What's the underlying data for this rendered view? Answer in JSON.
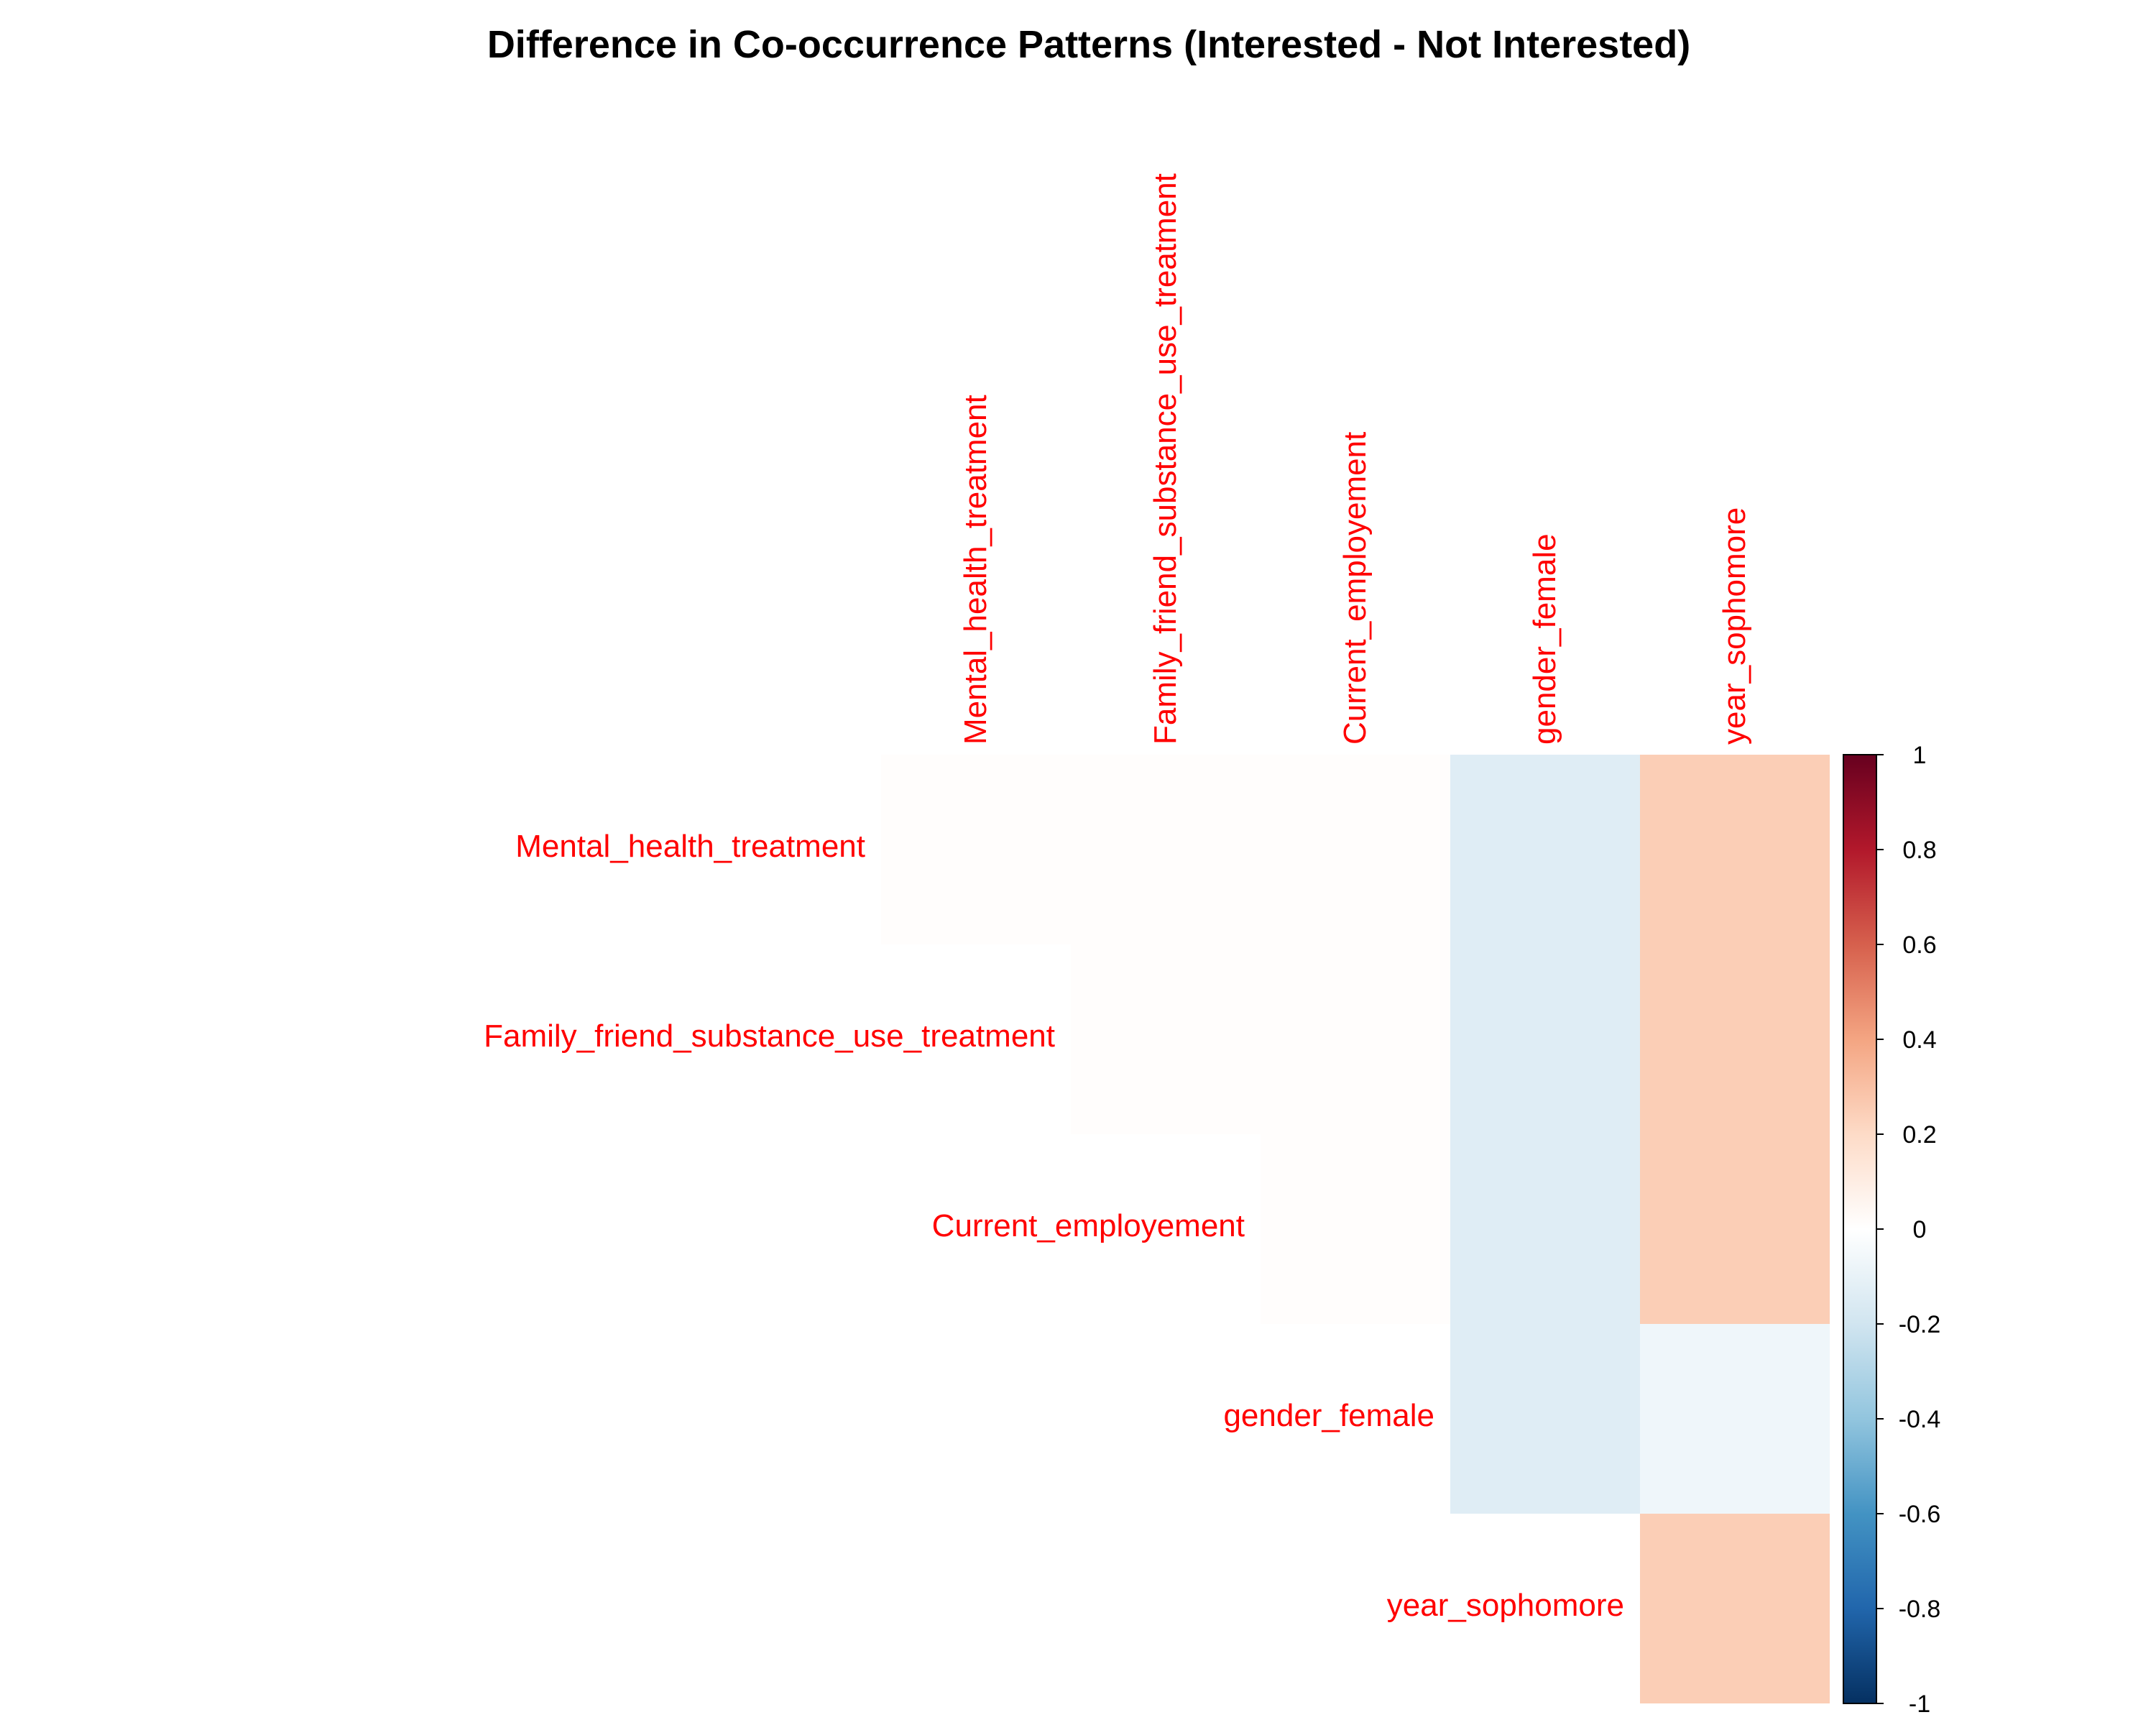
{
  "chart_data": {
    "type": "heatmap",
    "title": "Difference in Co-occurrence Patterns (Interested - Not Interested)",
    "layout": "upper-triangle",
    "variables": [
      "Mental_health_treatment",
      "Family_friend_substance_use_treatment",
      "Current_employement",
      "gender_female",
      "year_sophomore"
    ],
    "matrix": [
      [
        0.01,
        0.01,
        0.01,
        -0.14,
        0.25
      ],
      [
        null,
        0.01,
        0.01,
        -0.14,
        0.25
      ],
      [
        null,
        null,
        0.01,
        -0.14,
        0.25
      ],
      [
        null,
        null,
        null,
        -0.14,
        -0.07
      ],
      [
        null,
        null,
        null,
        null,
        0.25
      ]
    ],
    "colorbar": {
      "min": -1,
      "max": 1,
      "ticks": [
        "1",
        "0.8",
        "0.6",
        "0.4",
        "0.2",
        "0",
        "-0.2",
        "-0.4",
        "-0.6",
        "-0.8",
        "-1"
      ],
      "colors": [
        "#053061",
        "#2166ac",
        "#4393c3",
        "#92c5de",
        "#d1e5f0",
        "#ffffff",
        "#fddbc7",
        "#f4a582",
        "#d6604d",
        "#b2182b",
        "#67001f"
      ]
    },
    "label_color": "#ff0000",
    "grid": false
  }
}
